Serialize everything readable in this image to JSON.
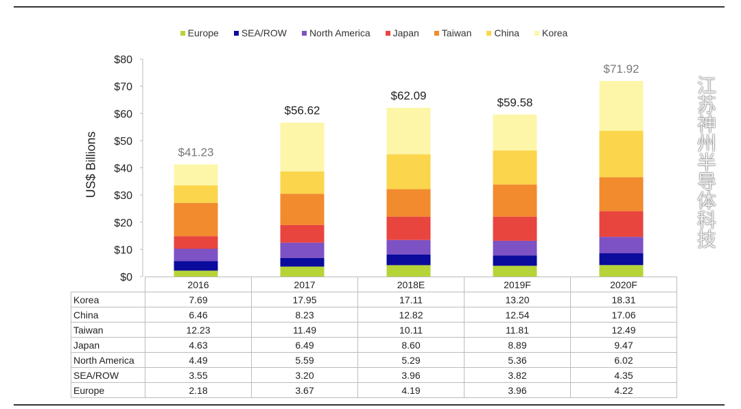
{
  "chart_data": {
    "type": "bar",
    "stacked": true,
    "categories": [
      "2016",
      "2017",
      "2018E",
      "2019F",
      "2020F"
    ],
    "ylabel": "US$ Billions",
    "ylim": [
      0,
      80
    ],
    "yticks": [
      0,
      10,
      20,
      30,
      40,
      50,
      60,
      70,
      80
    ],
    "ytick_labels": [
      "$0",
      "$10",
      "$20",
      "$30",
      "$40",
      "$50",
      "$60",
      "$70",
      "$80"
    ],
    "legend_position": "top",
    "grid": false,
    "series": [
      {
        "name": "Europe",
        "color": "#b6d437",
        "values": [
          2.18,
          3.67,
          4.19,
          3.96,
          4.22
        ]
      },
      {
        "name": "SEA/ROW",
        "color": "#0b0b9c",
        "values": [
          3.55,
          3.2,
          3.96,
          3.82,
          4.35
        ]
      },
      {
        "name": "North America",
        "color": "#7d52c4",
        "values": [
          4.49,
          5.59,
          5.29,
          5.36,
          6.02
        ]
      },
      {
        "name": "Japan",
        "color": "#e8453f",
        "values": [
          4.63,
          6.49,
          8.6,
          8.89,
          9.47
        ]
      },
      {
        "name": "Taiwan",
        "color": "#f18b2e",
        "values": [
          12.23,
          11.49,
          10.11,
          11.81,
          12.49
        ]
      },
      {
        "name": "China",
        "color": "#fbd54c",
        "values": [
          6.46,
          8.23,
          12.82,
          12.54,
          17.06
        ]
      },
      {
        "name": "Korea",
        "color": "#fdf6a8",
        "values": [
          7.69,
          17.95,
          17.11,
          13.2,
          18.31
        ]
      }
    ],
    "totals": [
      "$41.23",
      "$56.62",
      "$62.09",
      "$59.58",
      "$71.92"
    ],
    "total_colors": [
      "#777777",
      "#222222",
      "#222222",
      "#222222",
      "#777777"
    ],
    "table_row_order": [
      "Korea",
      "China",
      "Taiwan",
      "Japan",
      "North America",
      "SEA/ROW",
      "Europe"
    ],
    "table_cells": {
      "Korea": [
        "7.69",
        "17.95",
        "17.11",
        "13.20",
        "18.31"
      ],
      "China": [
        "6.46",
        "8.23",
        "12.82",
        "12.54",
        "17.06"
      ],
      "Taiwan": [
        "12.23",
        "11.49",
        "10.11",
        "11.81",
        "12.49"
      ],
      "Japan": [
        "4.63",
        "6.49",
        "8.60",
        "8.89",
        "9.47"
      ],
      "North America": [
        "4.49",
        "5.59",
        "5.29",
        "5.36",
        "6.02"
      ],
      "SEA/ROW": [
        "3.55",
        "3.20",
        "3.96",
        "3.82",
        "4.35"
      ],
      "Europe": [
        "2.18",
        "3.67",
        "4.19",
        "3.96",
        "4.22"
      ]
    }
  },
  "watermark": "江苏神州半导体科技"
}
